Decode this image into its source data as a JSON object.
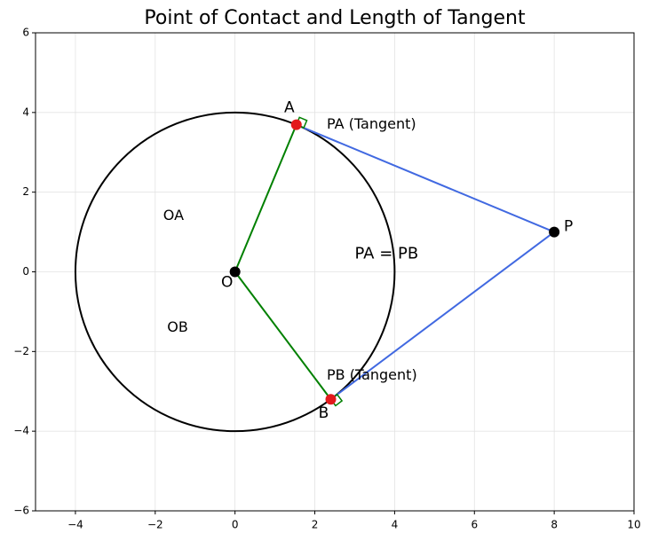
{
  "chart_data": {
    "type": "geometry",
    "title": "Point of Contact and Length of Tangent",
    "xlim": [
      -5,
      10
    ],
    "ylim": [
      -6,
      6
    ],
    "xticks": [
      {
        "value": -4,
        "label": "−4"
      },
      {
        "value": -2,
        "label": "−2"
      },
      0,
      2,
      4,
      6,
      8,
      10
    ],
    "yticks": [
      {
        "value": -6,
        "label": "−6"
      },
      {
        "value": -4,
        "label": "−4"
      },
      {
        "value": -2,
        "label": "−2"
      },
      0,
      2,
      4,
      6
    ],
    "grid": true,
    "circle": {
      "center": [
        0,
        0
      ],
      "radius": 4,
      "color": "#000000"
    },
    "segments": [
      {
        "x": [
          0,
          1.538
        ],
        "y": [
          0,
          3.692
        ],
        "color": "#008000"
      },
      {
        "x": [
          0,
          2.4
        ],
        "y": [
          0,
          -3.2
        ],
        "color": "#008000"
      },
      {
        "x": [
          8,
          1.538
        ],
        "y": [
          1,
          3.692
        ],
        "color": "#4169e1"
      },
      {
        "x": [
          8,
          2.4
        ],
        "y": [
          1,
          -3.2
        ],
        "color": "#4169e1"
      }
    ],
    "points": [
      {
        "name": "O",
        "x": 0,
        "y": 0,
        "color": "#000000"
      },
      {
        "name": "P",
        "x": 8,
        "y": 1,
        "color": "#000000"
      },
      {
        "name": "A",
        "x": 1.538,
        "y": 3.692,
        "color": "#e31a1c"
      },
      {
        "name": "B",
        "x": 2.4,
        "y": -3.2,
        "color": "#e31a1c"
      }
    ],
    "annotations": [
      {
        "text": "PA (Tangent)",
        "x": 2.3,
        "y": 3.7,
        "color": "#4169e1"
      },
      {
        "text": "PB (Tangent)",
        "x": 2.3,
        "y": -2.6,
        "color": "#4169e1"
      },
      {
        "text": "OA",
        "x": -1.8,
        "y": 1.4,
        "color": "#008000"
      },
      {
        "text": "OB",
        "x": -1.7,
        "y": -1.4,
        "color": "#008000"
      },
      {
        "text": "PA = PB",
        "x": 3,
        "y": 0.45,
        "color": "#00008b"
      }
    ]
  }
}
